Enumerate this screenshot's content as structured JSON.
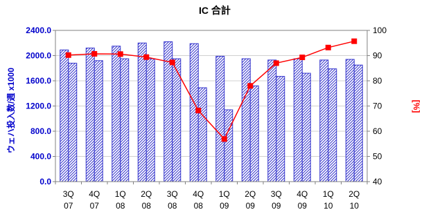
{
  "chart_data": {
    "type": "bar",
    "title": "IC 合計",
    "categories": [
      [
        "3Q",
        "07"
      ],
      [
        "4Q",
        "07"
      ],
      [
        "1Q",
        "08"
      ],
      [
        "2Q",
        "08"
      ],
      [
        "3Q",
        "08"
      ],
      [
        "4Q",
        "08"
      ],
      [
        "1Q",
        "09"
      ],
      [
        "2Q",
        "09"
      ],
      [
        "3Q",
        "09"
      ],
      [
        "4Q",
        "09"
      ],
      [
        "1Q",
        "10"
      ],
      [
        "2Q",
        "10"
      ]
    ],
    "ylabel": "ウェハ投入数/週 x1000",
    "y2label": "[%]",
    "ylim": [
      0,
      2400
    ],
    "y2lim": [
      40,
      100
    ],
    "yticks": [
      "0.0",
      "400.0",
      "800.0",
      "1200.0",
      "1600.0",
      "2000.0",
      "2400.0"
    ],
    "y2ticks": [
      "40",
      "50",
      "60",
      "70",
      "80",
      "90",
      "100"
    ],
    "grid": true,
    "series": [
      {
        "axis": "left",
        "kind": "bar",
        "values": [
          2090,
          2120,
          2150,
          2200,
          2220,
          2190,
          1990,
          1950,
          1930,
          1950,
          1930,
          1940
        ]
      },
      {
        "axis": "left",
        "kind": "bar",
        "values": [
          1880,
          1920,
          1950,
          1950,
          1950,
          1490,
          1140,
          1520,
          1670,
          1720,
          1790,
          1850
        ]
      },
      {
        "axis": "right",
        "kind": "line",
        "values": [
          90.2,
          90.7,
          90.6,
          89.4,
          87.3,
          68.2,
          56.9,
          78.0,
          87.0,
          89.3,
          93.2,
          95.7
        ]
      }
    ],
    "colors": {
      "bar": "#3333cc",
      "line": "#ff0000",
      "grid": "#d0d0d0",
      "axis_left": "#0000cc"
    }
  }
}
